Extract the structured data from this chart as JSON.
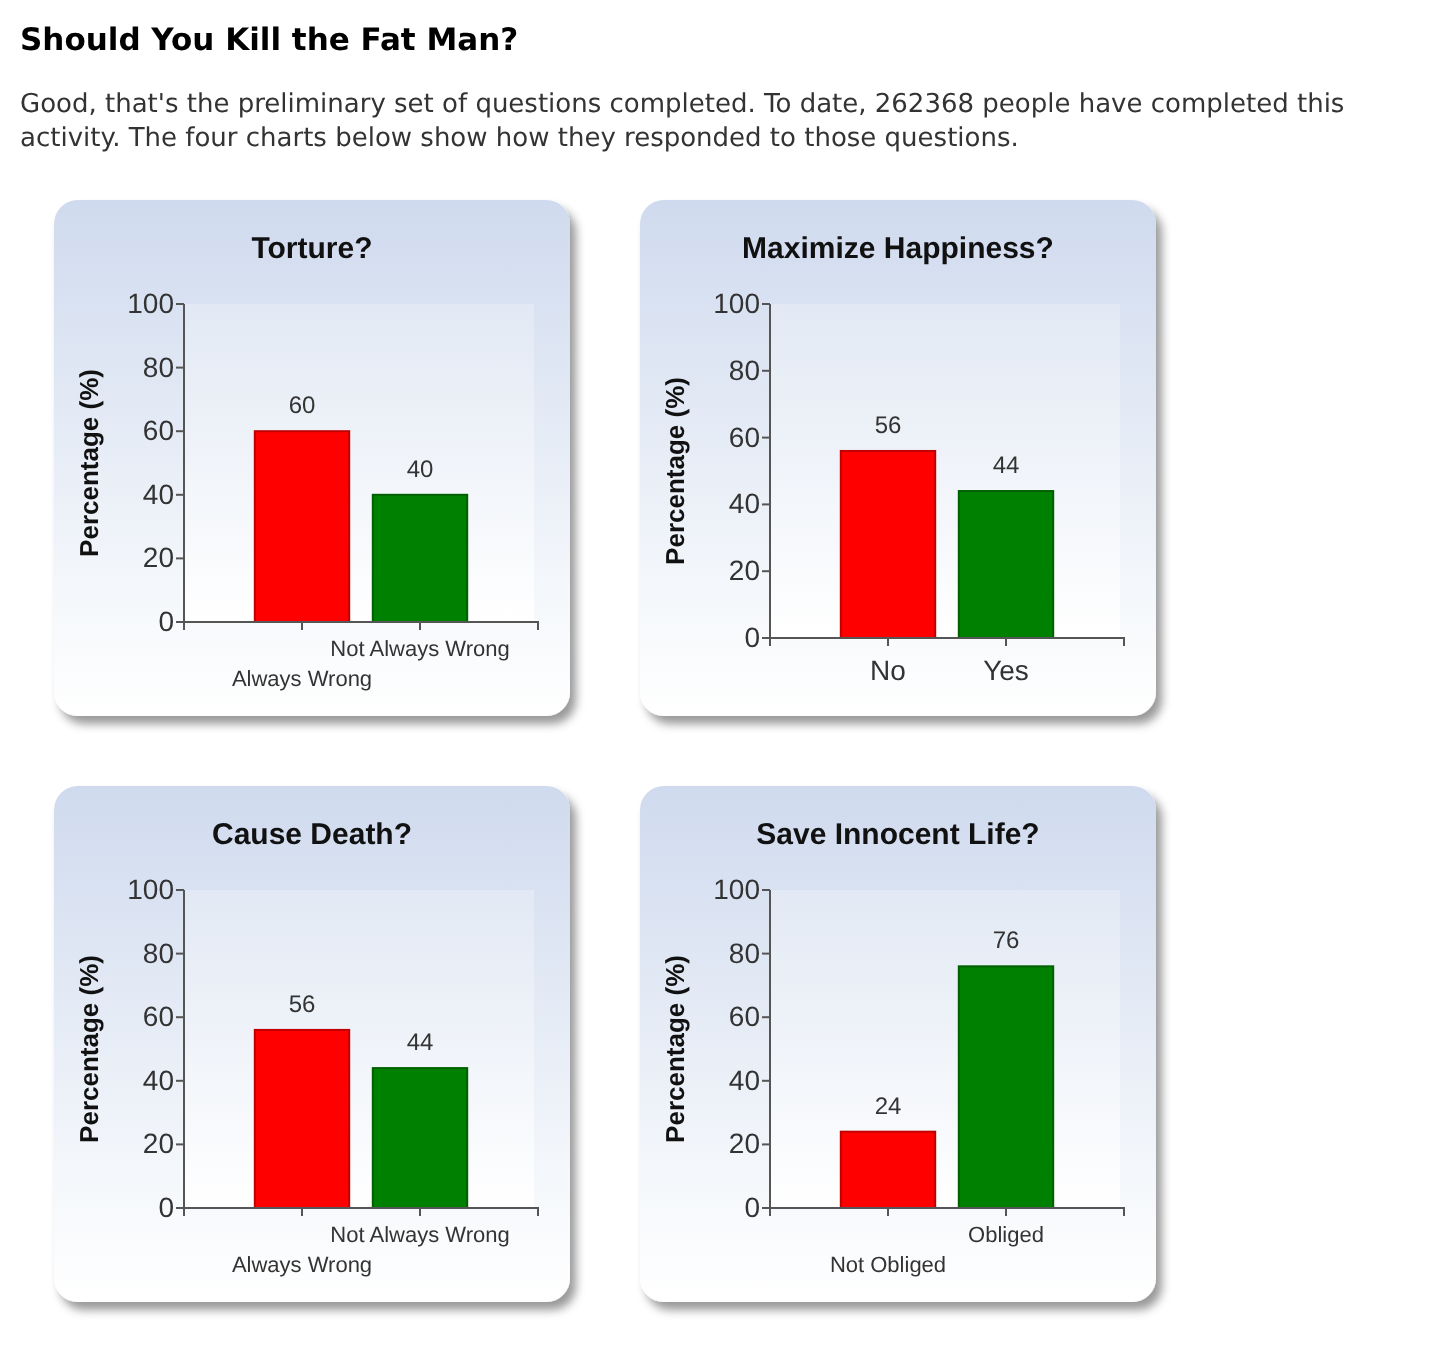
{
  "chart_data": [
    {
      "type": "other",
      "title": "Should You Kill the Fat Man?",
      "annotations": [
        "Good, that's the preliminary set of questions completed. To date, 262368 people have completed this activity. The four charts below show how they responded to those questions."
      ]
    },
    {
      "type": "bar",
      "title": "Torture?",
      "ylabel": "Percentage (%)",
      "categories": [
        "Always Wrong",
        "Not Always Wrong"
      ],
      "values": [
        60,
        40
      ],
      "colors": [
        "#ff0000",
        "#008000"
      ],
      "ylim": [
        0,
        100
      ],
      "yticks": [
        0,
        20,
        40,
        60,
        80,
        100
      ],
      "data_labels": true
    },
    {
      "type": "bar",
      "title": "Maximize Happiness?",
      "ylabel": "Percentage (%)",
      "categories": [
        "No",
        "Yes"
      ],
      "values": [
        56,
        44
      ],
      "colors": [
        "#ff0000",
        "#008000"
      ],
      "ylim": [
        0,
        100
      ],
      "yticks": [
        0,
        20,
        40,
        60,
        80,
        100
      ],
      "data_labels": true
    },
    {
      "type": "bar",
      "title": "Cause Death?",
      "ylabel": "Percentage (%)",
      "categories": [
        "Always Wrong",
        "Not Always Wrong"
      ],
      "values": [
        56,
        44
      ],
      "colors": [
        "#ff0000",
        "#008000"
      ],
      "ylim": [
        0,
        100
      ],
      "yticks": [
        0,
        20,
        40,
        60,
        80,
        100
      ],
      "data_labels": true
    },
    {
      "type": "bar",
      "title": "Save Innocent Life?",
      "ylabel": "Percentage (%)",
      "categories": [
        "Not Obliged",
        "Obliged"
      ],
      "values": [
        24,
        76
      ],
      "colors": [
        "#ff0000",
        "#008000"
      ],
      "ylim": [
        0,
        100
      ],
      "yticks": [
        0,
        20,
        40,
        60,
        80,
        100
      ],
      "data_labels": true
    }
  ]
}
